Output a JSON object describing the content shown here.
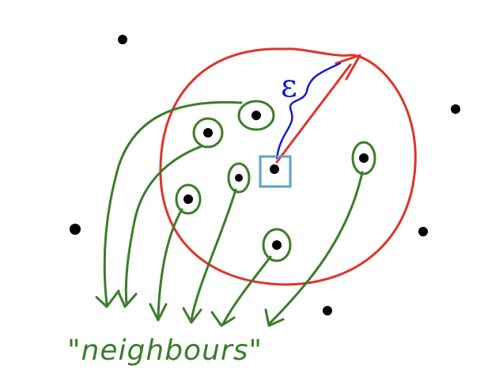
{
  "diagram": {
    "epsilon_symbol": "ε",
    "label_text": "\"neighbours\"",
    "colors": {
      "circle": "#e0332b",
      "radius_arrow": "#e0332b",
      "epsilon": "#1818d8",
      "center_box": "#5fa3c4",
      "neighbor_marks": "#3a7d2a",
      "points": "#000000"
    }
  }
}
